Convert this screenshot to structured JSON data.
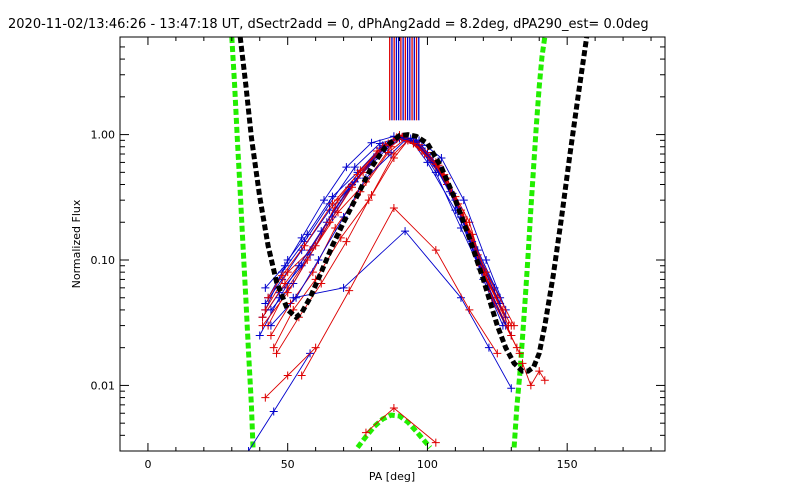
{
  "chart_data": {
    "type": "line",
    "title": "2020-11-02/13:46:26 - 13:47:18 UT, dSectr2add = 0, dPhAng2add = 8.2deg, dPA290_est=  0.0deg",
    "xlabel": "PA [deg]",
    "ylabel": "Normalized Flux",
    "xlim": [
      -10,
      185
    ],
    "ylim": [
      0.003,
      6.0
    ],
    "yscale": "log",
    "xticks": [
      0,
      50,
      100,
      150
    ],
    "xtick_labels": [
      "0",
      "50",
      "100",
      "150"
    ],
    "yticks": [
      0.01,
      0.1,
      1.0
    ],
    "ytick_labels": [
      "0.01",
      "0.10",
      "1.00"
    ],
    "grid": false,
    "legend": "none",
    "colors": {
      "red": "#dd0000",
      "blue": "#0000cc",
      "green": "#22ee00",
      "black": "#000000"
    },
    "vertical_markers": {
      "x": [
        86.5,
        87.3,
        88.1,
        88.9,
        89.7,
        90.5,
        91.3,
        92.1,
        92.9,
        93.7,
        94.5,
        95.3,
        96.1,
        96.9
      ],
      "colors": [
        "red",
        "blue",
        "red",
        "blue",
        "blue",
        "red",
        "blue",
        "red",
        "blue",
        "blue",
        "red",
        "blue",
        "red",
        "blue"
      ],
      "y_from": 1.3,
      "y_to": 6.0
    },
    "green_curves": [
      {
        "name": "",
        "x": [
          30,
          31,
          32,
          33,
          34,
          35,
          36,
          37,
          37.6
        ],
        "y": [
          6.0,
          2.5,
          0.9,
          0.35,
          0.13,
          0.05,
          0.018,
          0.007,
          0.0032
        ]
      },
      {
        "name": "",
        "x": [
          131,
          132,
          133,
          134,
          135,
          136,
          137,
          138,
          139,
          140,
          141,
          142
        ],
        "y": [
          0.0032,
          0.0068,
          0.012,
          0.024,
          0.05,
          0.11,
          0.25,
          0.55,
          1.2,
          2.4,
          4.2,
          6.0
        ]
      },
      {
        "name": "",
        "x": [
          75,
          78,
          81,
          84,
          87,
          90,
          93,
          96,
          99,
          101
        ],
        "y": [
          0.0032,
          0.0039,
          0.0047,
          0.0054,
          0.0058,
          0.0057,
          0.0051,
          0.0043,
          0.0036,
          0.0032
        ]
      }
    ],
    "black_curve": {
      "x": [
        33,
        35,
        37,
        40,
        43,
        46,
        50,
        53,
        55,
        58,
        62,
        66,
        70,
        75,
        80,
        85,
        90,
        93,
        96,
        100,
        105,
        110,
        115,
        120,
        125,
        128,
        131,
        134,
        136,
        138,
        140,
        142,
        145,
        148,
        151,
        154,
        157
      ],
      "y": [
        6.0,
        2.5,
        0.95,
        0.32,
        0.13,
        0.067,
        0.04,
        0.035,
        0.038,
        0.05,
        0.08,
        0.13,
        0.2,
        0.33,
        0.55,
        0.8,
        0.98,
        1.0,
        0.97,
        0.85,
        0.55,
        0.3,
        0.15,
        0.07,
        0.03,
        0.02,
        0.015,
        0.013,
        0.013,
        0.014,
        0.018,
        0.03,
        0.075,
        0.22,
        0.7,
        2.1,
        6.0
      ]
    },
    "series": [
      {
        "color": "blue",
        "x": [
          42,
          48,
          55,
          65,
          75,
          85,
          90,
          95,
          100,
          110,
          120,
          128
        ],
        "y": [
          0.045,
          0.07,
          0.12,
          0.25,
          0.45,
          0.75,
          0.93,
          0.85,
          0.6,
          0.25,
          0.08,
          0.035
        ]
      },
      {
        "color": "red",
        "x": [
          43,
          50,
          58,
          68,
          78,
          87,
          91,
          97,
          104,
          113,
          121,
          130
        ],
        "y": [
          0.03,
          0.06,
          0.11,
          0.24,
          0.42,
          0.8,
          0.95,
          0.8,
          0.55,
          0.22,
          0.07,
          0.03
        ]
      },
      {
        "color": "blue",
        "x": [
          41,
          47,
          55,
          64,
          73,
          82,
          90,
          96,
          103,
          112,
          122,
          130
        ],
        "y": [
          0.035,
          0.055,
          0.09,
          0.2,
          0.4,
          0.7,
          0.97,
          0.88,
          0.5,
          0.18,
          0.06,
          0.025
        ]
      },
      {
        "color": "red",
        "x": [
          44,
          51,
          59,
          67,
          76,
          86,
          92,
          98,
          106,
          115,
          123,
          132
        ],
        "y": [
          0.025,
          0.045,
          0.08,
          0.18,
          0.35,
          0.72,
          0.92,
          0.75,
          0.48,
          0.2,
          0.05,
          0.02
        ]
      },
      {
        "color": "blue",
        "x": [
          42,
          50,
          57,
          66,
          75,
          84,
          90,
          97,
          105,
          113,
          121,
          128
        ],
        "y": [
          0.04,
          0.1,
          0.16,
          0.32,
          0.5,
          0.82,
          0.98,
          0.9,
          0.65,
          0.3,
          0.1,
          0.04
        ]
      },
      {
        "color": "red",
        "x": [
          45,
          52,
          60,
          69,
          79,
          88,
          93,
          99,
          107,
          116,
          124,
          133
        ],
        "y": [
          0.02,
          0.04,
          0.07,
          0.15,
          0.3,
          0.65,
          0.9,
          0.7,
          0.4,
          0.16,
          0.045,
          0.018
        ]
      },
      {
        "color": "blue",
        "x": [
          43,
          48,
          56,
          65,
          74,
          83,
          91,
          98,
          104,
          112,
          120,
          127
        ],
        "y": [
          0.05,
          0.08,
          0.14,
          0.28,
          0.55,
          0.85,
          0.96,
          0.82,
          0.55,
          0.22,
          0.07,
          0.03
        ]
      },
      {
        "color": "red",
        "x": [
          41,
          49,
          58,
          67,
          77,
          86,
          90,
          96,
          103,
          111,
          119,
          127
        ],
        "y": [
          0.035,
          0.065,
          0.12,
          0.26,
          0.5,
          0.85,
          0.99,
          0.86,
          0.6,
          0.28,
          0.09,
          0.04
        ]
      },
      {
        "color": "blue",
        "x": [
          44,
          53,
          61,
          70,
          78,
          87,
          92,
          98,
          104,
          110,
          118,
          126
        ],
        "y": [
          0.03,
          0.05,
          0.1,
          0.22,
          0.45,
          0.7,
          0.9,
          0.78,
          0.5,
          0.3,
          0.12,
          0.05
        ]
      },
      {
        "color": "red",
        "x": [
          42,
          50,
          60,
          68,
          76,
          84,
          89,
          95,
          102,
          110,
          118,
          125
        ],
        "y": [
          0.04,
          0.08,
          0.13,
          0.3,
          0.52,
          0.8,
          0.95,
          0.88,
          0.62,
          0.32,
          0.11,
          0.05
        ]
      },
      {
        "color": "blue",
        "x": [
          40,
          47,
          54,
          62,
          72,
          82,
          89,
          95,
          101,
          108,
          116,
          124
        ],
        "y": [
          0.025,
          0.05,
          0.09,
          0.17,
          0.38,
          0.68,
          0.92,
          0.9,
          0.66,
          0.35,
          0.14,
          0.06
        ]
      },
      {
        "color": "red",
        "x": [
          46,
          54,
          62,
          71,
          80,
          88,
          93,
          100,
          107,
          114,
          122,
          130
        ],
        "y": [
          0.018,
          0.035,
          0.065,
          0.14,
          0.33,
          0.7,
          0.9,
          0.72,
          0.45,
          0.2,
          0.06,
          0.025
        ]
      },
      {
        "color": "blue",
        "x": [
          42,
          49,
          55,
          63,
          71,
          80,
          88,
          94,
          100,
          109,
          117,
          126
        ],
        "y": [
          0.06,
          0.09,
          0.15,
          0.3,
          0.55,
          0.86,
          0.97,
          0.93,
          0.7,
          0.34,
          0.12,
          0.045
        ]
      },
      {
        "color": "red",
        "x": [
          43,
          48,
          56,
          66,
          75,
          85,
          91,
          97,
          104,
          112,
          121,
          131
        ],
        "y": [
          0.05,
          0.075,
          0.13,
          0.28,
          0.48,
          0.82,
          0.96,
          0.83,
          0.57,
          0.25,
          0.08,
          0.03
        ]
      },
      {
        "color": "blue",
        "x": [
          44,
          52,
          58,
          66,
          74,
          83,
          90,
          96,
          102,
          111,
          119,
          128
        ],
        "y": [
          0.04,
          0.065,
          0.11,
          0.22,
          0.42,
          0.78,
          0.95,
          0.87,
          0.6,
          0.26,
          0.085,
          0.03
        ]
      },
      {
        "color": "red",
        "x": [
          41,
          50,
          57,
          65,
          73,
          82,
          89,
          95,
          103,
          112,
          120,
          129
        ],
        "y": [
          0.03,
          0.055,
          0.1,
          0.2,
          0.38,
          0.74,
          0.93,
          0.85,
          0.58,
          0.24,
          0.08,
          0.03
        ]
      },
      {
        "color": "blue",
        "x": [
          52,
          70,
          92,
          112,
          122,
          130
        ],
        "y": [
          0.05,
          0.06,
          0.17,
          0.05,
          0.02,
          0.0095
        ]
      },
      {
        "color": "red",
        "x": [
          55,
          72,
          88,
          103,
          115,
          125
        ],
        "y": [
          0.012,
          0.057,
          0.26,
          0.12,
          0.04,
          0.018
        ]
      },
      {
        "color": "blue",
        "x": [
          36,
          45,
          58
        ],
        "y": [
          0.003,
          0.0062,
          0.018
        ]
      },
      {
        "color": "red",
        "x": [
          42,
          50,
          60
        ],
        "y": [
          0.008,
          0.012,
          0.02
        ]
      },
      {
        "color": "red",
        "x": [
          78,
          88,
          103
        ],
        "y": [
          0.0042,
          0.0066,
          0.0035
        ]
      },
      {
        "color": "red",
        "x": [
          134,
          137,
          140,
          142
        ],
        "y": [
          0.015,
          0.01,
          0.013,
          0.011
        ]
      }
    ]
  }
}
